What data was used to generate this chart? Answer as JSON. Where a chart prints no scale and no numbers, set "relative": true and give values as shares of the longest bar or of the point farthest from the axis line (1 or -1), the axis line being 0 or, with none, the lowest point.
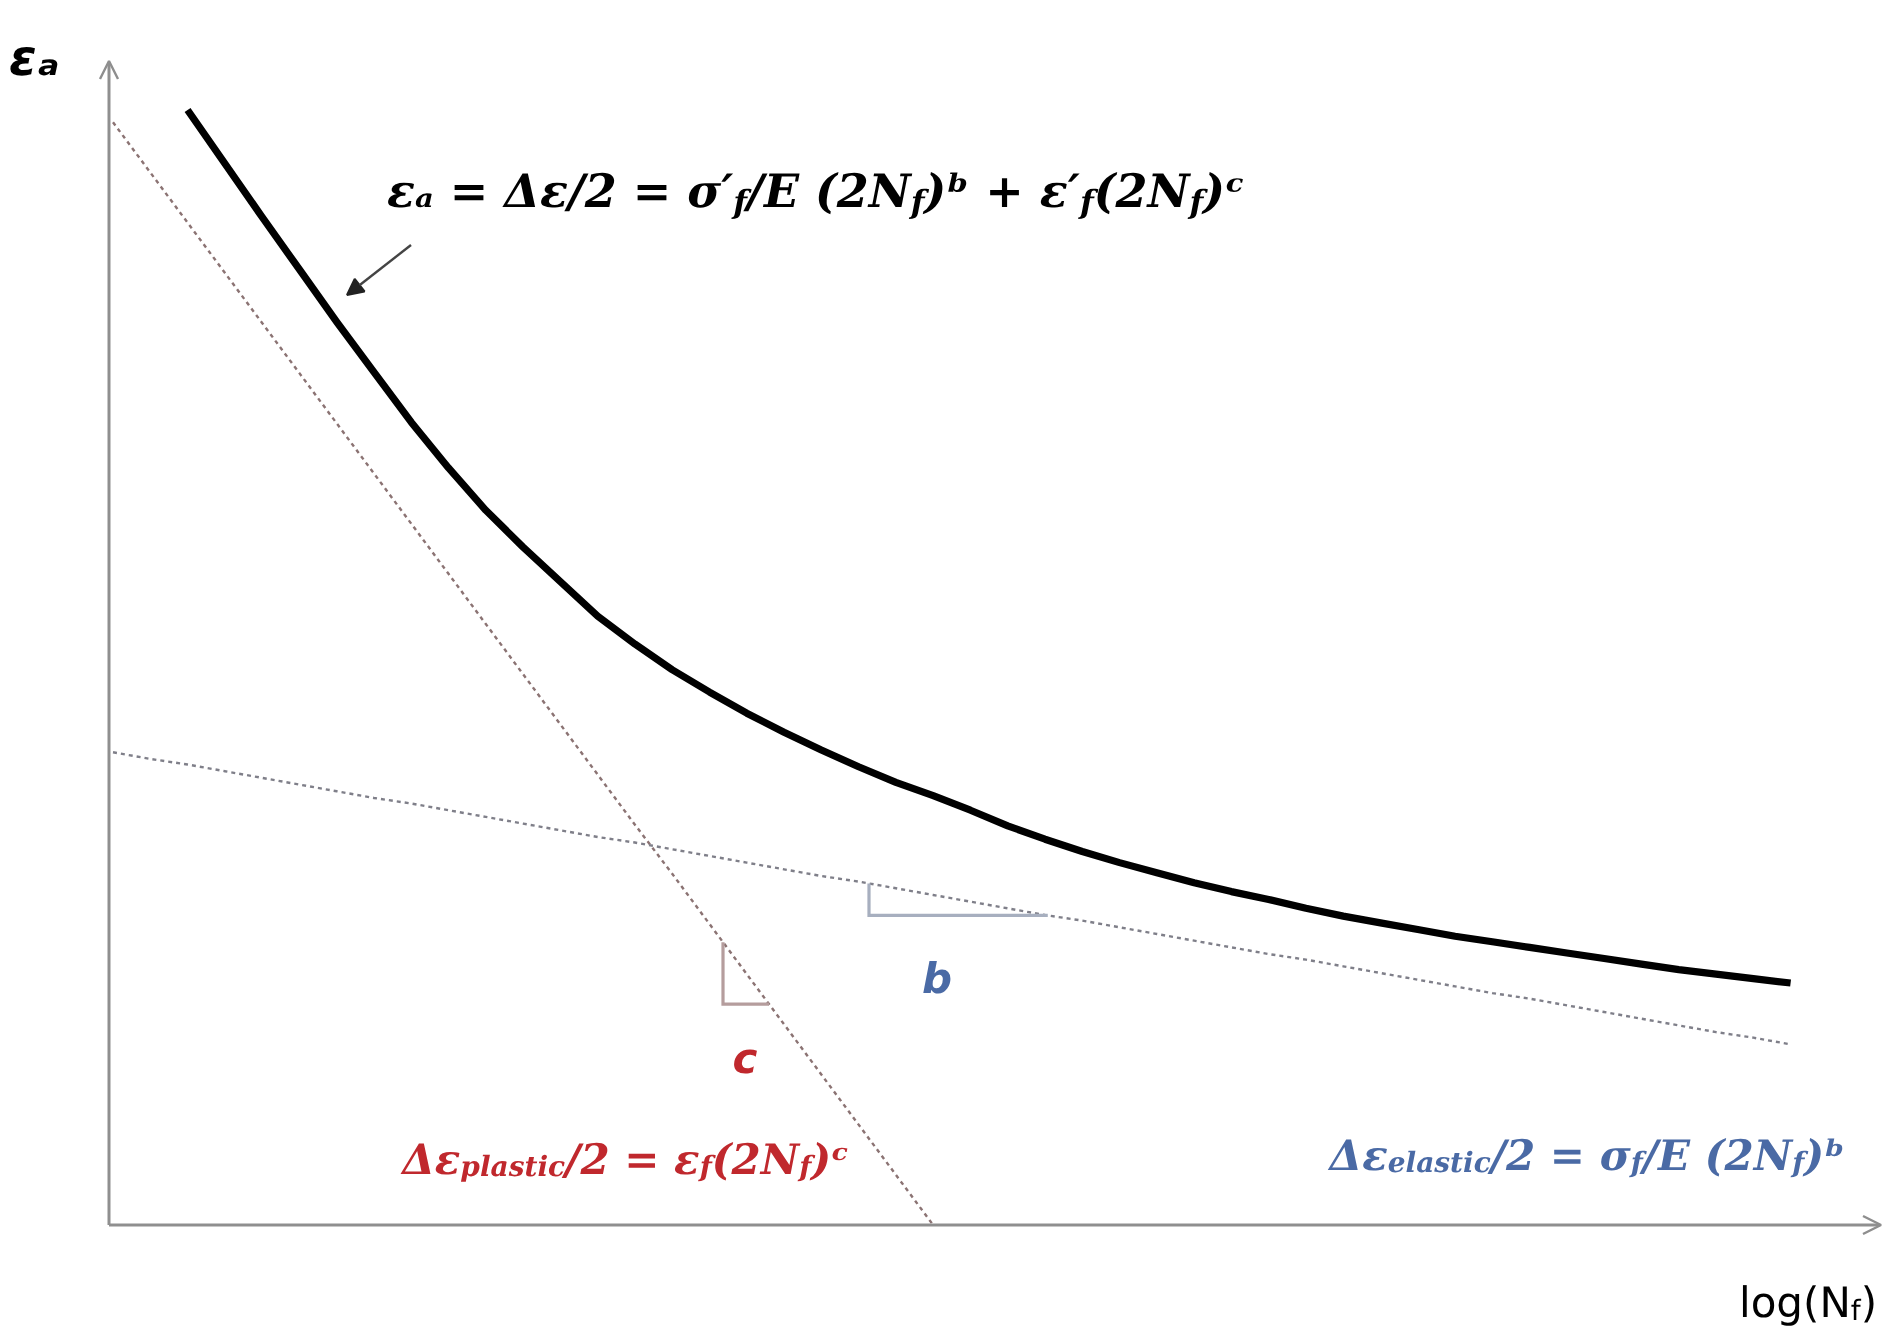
{
  "chart_data": {
    "type": "line",
    "relative": true,
    "xlabel": "log(N$_{f}$)",
    "ylabel": "εₐ",
    "categories": [
      null,
      null,
      null,
      null,
      null,
      null,
      null,
      null,
      null,
      null,
      null,
      null,
      null,
      null,
      null,
      null,
      null,
      null,
      null,
      null,
      null,
      null,
      null,
      null,
      null,
      null,
      null,
      null,
      null,
      null,
      null,
      null,
      null,
      null,
      null,
      null,
      null,
      null,
      null,
      null,
      null,
      null,
      null,
      null,
      null,
      null
    ],
    "series": [
      {
        "name": "εₐ = Δε/2 = σ′$_{f}$/E (2N$_{f}$)ᵇ + ε′$_{f}$(2N$_{f}$)ᶜ",
        "color": "#000000",
        "line_style": "solid",
        "values": [
          null,
          null,
          1.0,
          0.952,
          0.904,
          0.857,
          0.81,
          0.765,
          0.72,
          0.679,
          0.641,
          0.608,
          0.577,
          0.546,
          0.521,
          0.498,
          0.478,
          0.459,
          0.442,
          0.426,
          0.411,
          0.397,
          0.385,
          0.372,
          0.358,
          0.346,
          0.335,
          0.325,
          0.316,
          0.307,
          0.299,
          0.292,
          0.284,
          0.277,
          0.271,
          0.265,
          0.259,
          0.254,
          0.249,
          0.244,
          0.239,
          0.234,
          0.229,
          0.225,
          0.221,
          0.217
        ]
      },
      {
        "name": "Δε$_{plastic}$/2 = ε$_{f}$(2N$_{f}$)ᶜ",
        "color": "#8b7373",
        "line_style": "dotted",
        "values": [
          0.989,
          0.944,
          0.899,
          0.854,
          0.809,
          0.764,
          0.719,
          0.674,
          0.629,
          0.584,
          0.539,
          0.494,
          0.449,
          0.404,
          0.359,
          0.315,
          0.27,
          0.225,
          0.18,
          0.135,
          0.09,
          0.045,
          0.0,
          null,
          null,
          null,
          null,
          null,
          null,
          null,
          null,
          null,
          null,
          null,
          null,
          null,
          null,
          null,
          null,
          null,
          null,
          null,
          null,
          null,
          null,
          null
        ]
      },
      {
        "name": "Δε$_{elastic}$/2 = σ$_{f}$/E (2N$_{f}$)ᵇ",
        "color": "#7f7f89",
        "line_style": "dotted",
        "values": [
          0.424,
          0.418,
          0.413,
          0.407,
          0.401,
          0.395,
          0.389,
          0.383,
          0.378,
          0.372,
          0.366,
          0.36,
          0.354,
          0.348,
          0.343,
          0.337,
          0.331,
          0.325,
          0.319,
          0.313,
          0.308,
          0.302,
          0.296,
          0.29,
          0.284,
          0.278,
          0.273,
          0.267,
          0.261,
          0.255,
          0.249,
          0.243,
          0.238,
          0.232,
          0.226,
          0.22,
          0.214,
          0.208,
          0.203,
          0.197,
          0.191,
          0.185,
          0.179,
          0.173,
          0.168,
          0.162
        ]
      }
    ],
    "annotations": [
      "b",
      "c"
    ]
  }
}
